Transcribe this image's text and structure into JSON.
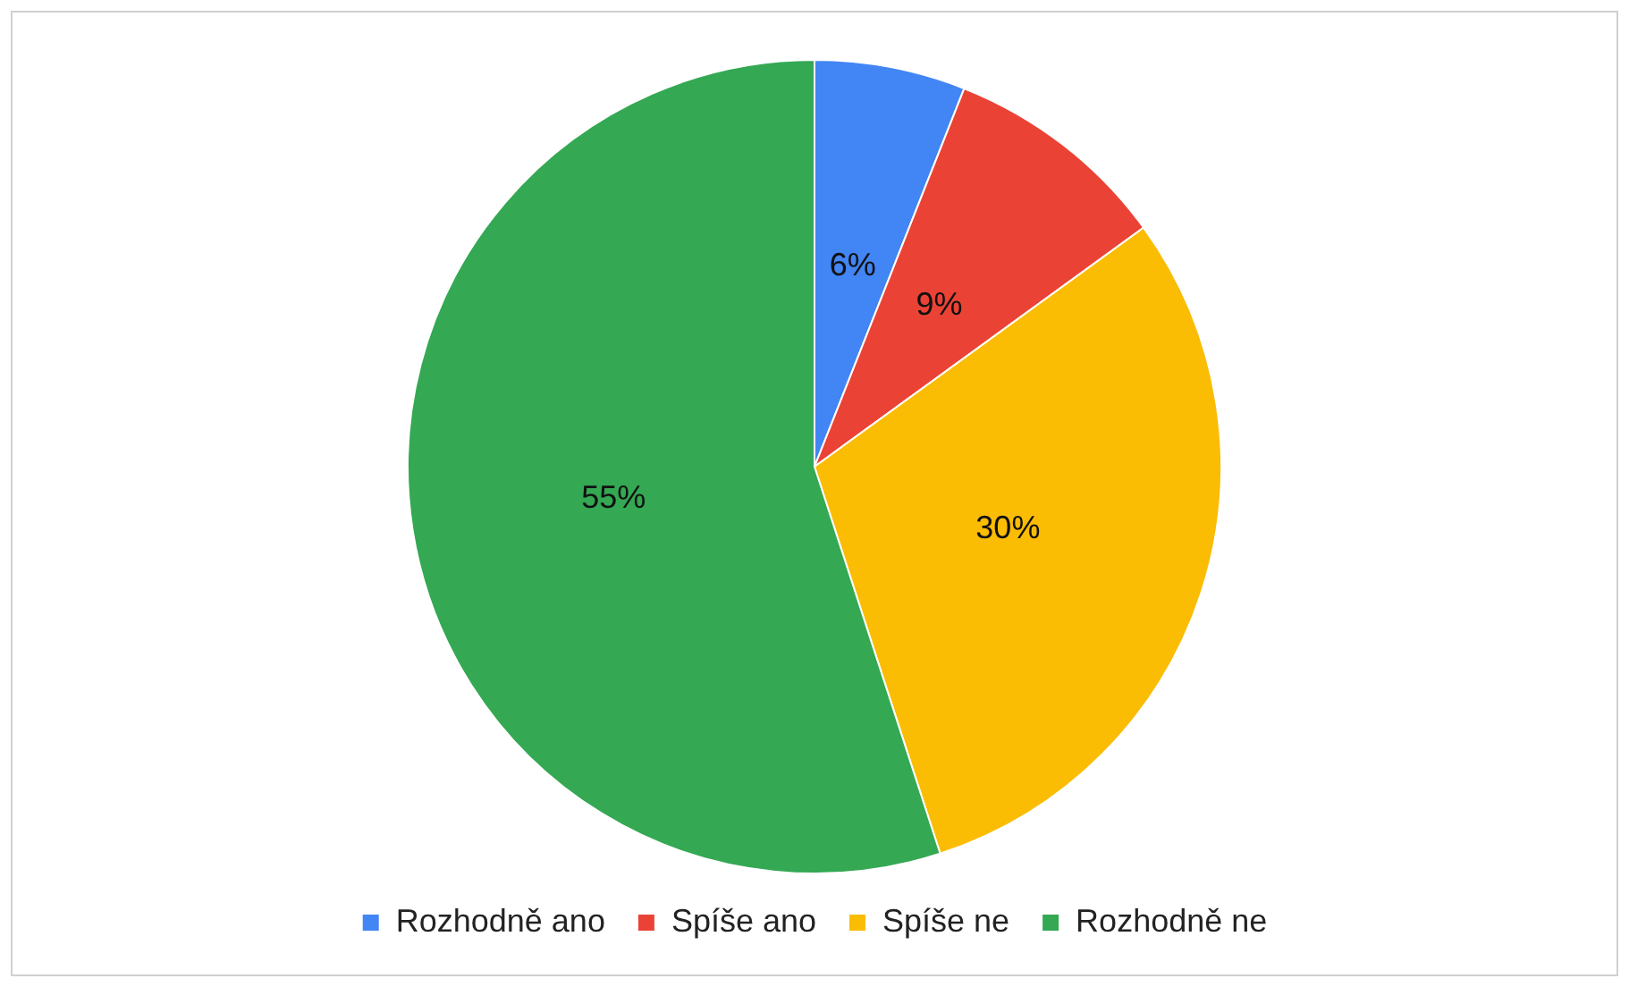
{
  "chart_data": {
    "type": "pie",
    "categories": [
      "Rozhodně ano",
      "Spíše ano",
      "Spíše ne",
      "Rozhodně ne"
    ],
    "values": [
      6,
      9,
      30,
      55
    ],
    "colors": [
      "#4285f4",
      "#ea4335",
      "#fbbc04",
      "#34a853"
    ],
    "value_labels": [
      "6%",
      "9%",
      "30%",
      "55%"
    ],
    "legend": "bottom"
  }
}
